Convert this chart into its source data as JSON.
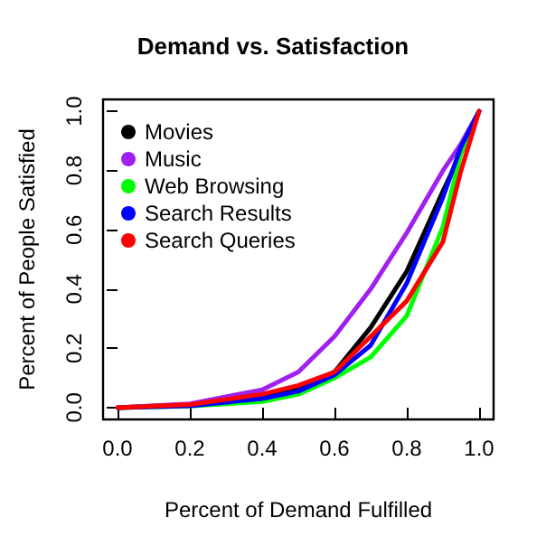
{
  "chart_data": {
    "type": "line",
    "title": "Demand vs. Satisfaction",
    "xlabel": "Percent of Demand Fulfilled",
    "ylabel": "Percent of People Satisfied",
    "x": [
      0,
      0.2,
      0.4,
      0.5,
      0.6,
      0.7,
      0.8,
      0.9,
      0.95,
      1
    ],
    "series": [
      {
        "name": "Movies",
        "color": "#000000",
        "values": [
          0,
          0.01,
          0.04,
          0.066,
          0.12,
          0.27,
          0.46,
          0.73,
          0.86,
          1
        ]
      },
      {
        "name": "Music",
        "color": "#a020f0",
        "values": [
          0,
          0.013,
          0.06,
          0.12,
          0.24,
          0.4,
          0.59,
          0.8,
          0.89,
          1
        ]
      },
      {
        "name": "Web Browsing",
        "color": "#00ff00",
        "values": [
          0,
          0.005,
          0.02,
          0.045,
          0.1,
          0.17,
          0.31,
          0.61,
          0.86,
          1
        ]
      },
      {
        "name": "Search Results",
        "color": "#0000ff",
        "values": [
          0,
          0.006,
          0.03,
          0.055,
          0.11,
          0.21,
          0.42,
          0.71,
          0.88,
          1
        ]
      },
      {
        "name": "Search Queries",
        "color": "#ff0000",
        "values": [
          0,
          0.01,
          0.045,
          0.075,
          0.12,
          0.24,
          0.36,
          0.56,
          0.8,
          1
        ]
      }
    ],
    "xlim": [
      -0.04,
      1.04
    ],
    "ylim": [
      -0.04,
      1.04
    ],
    "xticks": [
      {
        "value": 0,
        "label": "0.0"
      },
      0.2,
      0.4,
      0.6,
      0.8,
      {
        "value": 1,
        "label": "1.0"
      }
    ],
    "yticks": [
      {
        "value": 0,
        "label": "0.0"
      },
      0.2,
      0.4,
      0.6,
      0.8,
      {
        "value": 1,
        "label": "1.0"
      }
    ],
    "legend": "top left",
    "grid": false,
    "marker": "none",
    "line_style": "solid"
  }
}
